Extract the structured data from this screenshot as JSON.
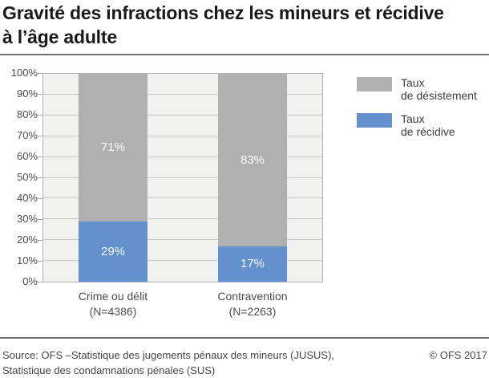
{
  "title": {
    "line1": "Gravité des infractions chez les mineurs et récidive",
    "line2": "à l’âge adulte"
  },
  "legend": {
    "items": [
      {
        "name": "Taux de désistement",
        "label_line1": "Taux",
        "label_line2": "de désistement",
        "color": "#b0b0b0"
      },
      {
        "name": "Taux de récidive",
        "label_line1": "Taux",
        "label_line2": "de récidive",
        "color": "#6391ce"
      }
    ]
  },
  "chart_data": {
    "type": "bar",
    "stacked": true,
    "orientation": "vertical",
    "categories": [
      "Crime ou délit",
      "Contravention"
    ],
    "category_sublabels": [
      "(N=4386)",
      "(N=2263)"
    ],
    "series": [
      {
        "name": "Taux de récidive",
        "color": "#6391ce",
        "values": [
          29,
          17
        ],
        "labels": [
          "29%",
          "17%"
        ]
      },
      {
        "name": "Taux de désistement",
        "color": "#b0b0b0",
        "values": [
          71,
          83
        ],
        "labels": [
          "71%",
          "83%"
        ]
      }
    ],
    "ylim": [
      0,
      100
    ],
    "ytick_labels": [
      "0%",
      "10%",
      "20%",
      "30%",
      "40%",
      "50%",
      "60%",
      "70%",
      "80%",
      "90%",
      "100%"
    ],
    "grid": true,
    "legend_position": "right",
    "plot_background": "#f0f0ef",
    "grid_color": "#c8c8c7",
    "bar_label_color": "#f2f2f2"
  },
  "footer": {
    "source_line1": "Source: OFS –Statistique des jugements pénaux des mineurs (JUSUS),",
    "source_line2": "Statistique des condamnations pénales (SUS)",
    "copyright": "© OFS 2017"
  }
}
